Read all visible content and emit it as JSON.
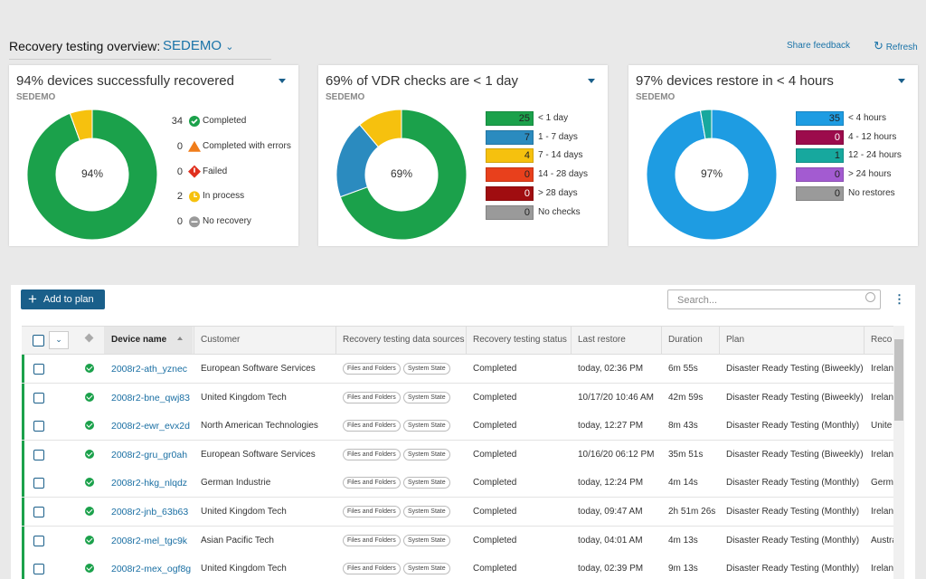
{
  "header": {
    "title": "Recovery testing overview:",
    "org": "SEDEMO",
    "share": "Share feedback",
    "refresh": "Refresh"
  },
  "cards": [
    {
      "title": "94% devices successfully recovered",
      "subtitle": "SEDEMO",
      "center": "94%",
      "legend_style": "icon",
      "items": [
        {
          "count": 34,
          "label": "Completed",
          "color": "#1ba14b"
        },
        {
          "count": 0,
          "label": "Completed with errors",
          "color": "#f07d1a"
        },
        {
          "count": 0,
          "label": "Failed",
          "color": "#e0301e"
        },
        {
          "count": 2,
          "label": "In process",
          "color": "#f6c10e"
        },
        {
          "count": 0,
          "label": "No recovery",
          "color": "#9a9a9a"
        }
      ]
    },
    {
      "title": "69% of VDR checks are < 1 day",
      "subtitle": "SEDEMO",
      "center": "69%",
      "legend_style": "box",
      "items": [
        {
          "count": 25,
          "label": "< 1 day",
          "color": "#1ba14b"
        },
        {
          "count": 7,
          "label": "1 - 7 days",
          "color": "#2b8bbf"
        },
        {
          "count": 4,
          "label": "7 - 14 days",
          "color": "#f6c10e"
        },
        {
          "count": 0,
          "label": "14 - 28 days",
          "color": "#e8401c"
        },
        {
          "count": 0,
          "label": "> 28 days",
          "color": "#a00d10"
        },
        {
          "count": 0,
          "label": "No checks",
          "color": "#9a9a9a"
        }
      ]
    },
    {
      "title": "97% devices restore in < 4 hours",
      "subtitle": "SEDEMO",
      "center": "97%",
      "legend_style": "box",
      "items": [
        {
          "count": 35,
          "label": "< 4 hours",
          "color": "#1e9ce2"
        },
        {
          "count": 0,
          "label": "4 - 12 hours",
          "color": "#9c0b4c"
        },
        {
          "count": 1,
          "label": "12 - 24 hours",
          "color": "#17a89e"
        },
        {
          "count": 0,
          "label": "> 24 hours",
          "color": "#a35bd1"
        },
        {
          "count": 0,
          "label": "No restores",
          "color": "#9a9a9a"
        }
      ]
    }
  ],
  "table": {
    "add_button": "Add to plan",
    "search_placeholder": "Search...",
    "columns": [
      "Device name",
      "Customer",
      "Recovery testing data sources",
      "Recovery testing status",
      "Last restore",
      "Duration",
      "Plan",
      "Reco"
    ],
    "rows": [
      {
        "device": "2008r2-ath_yznec",
        "customer": "European Software Services",
        "sources": [
          "Files and Folders",
          "System State"
        ],
        "status": "Completed",
        "last_restore": "today, 02:36 PM",
        "duration": "6m 55s",
        "plan": "Disaster Ready Testing (Biweekly)",
        "location": "Irelan"
      },
      {
        "device": "2008r2-bne_qwj83",
        "customer": "United Kingdom Tech",
        "sources": [
          "Files and Folders",
          "System State"
        ],
        "status": "Completed",
        "last_restore": "10/17/20 10:46 AM",
        "duration": "42m 59s",
        "plan": "Disaster Ready Testing (Biweekly)",
        "location": "Irelan"
      },
      {
        "device": "2008r2-ewr_evx2d",
        "customer": "North American Technologies",
        "sources": [
          "Files and Folders",
          "System State"
        ],
        "status": "Completed",
        "last_restore": "today, 12:27 PM",
        "duration": "8m 43s",
        "plan": "Disaster Ready Testing (Monthly)",
        "location": "Unite"
      },
      {
        "device": "2008r2-gru_gr0ah",
        "customer": "European Software Services",
        "sources": [
          "Files and Folders",
          "System State"
        ],
        "status": "Completed",
        "last_restore": "10/16/20 06:12 PM",
        "duration": "35m 51s",
        "plan": "Disaster Ready Testing (Biweekly)",
        "location": "Irelan"
      },
      {
        "device": "2008r2-hkg_nlqdz",
        "customer": "German Industrie",
        "sources": [
          "Files and Folders",
          "System State"
        ],
        "status": "Completed",
        "last_restore": "today, 12:24 PM",
        "duration": "4m 14s",
        "plan": "Disaster Ready Testing (Monthly)",
        "location": "Germ"
      },
      {
        "device": "2008r2-jnb_63b63",
        "customer": "United Kingdom Tech",
        "sources": [
          "Files and Folders",
          "System State"
        ],
        "status": "Completed",
        "last_restore": "today, 09:47 AM",
        "duration": "2h 51m 26s",
        "plan": "Disaster Ready Testing (Monthly)",
        "location": "Irelan"
      },
      {
        "device": "2008r2-mel_tgc9k",
        "customer": "Asian Pacific Tech",
        "sources": [
          "Files and Folders",
          "System State"
        ],
        "status": "Completed",
        "last_restore": "today, 04:01 AM",
        "duration": "4m 13s",
        "plan": "Disaster Ready Testing (Monthly)",
        "location": "Austra"
      },
      {
        "device": "2008r2-mex_ogf8g",
        "customer": "United Kingdom Tech",
        "sources": [
          "Files and Folders",
          "System State"
        ],
        "status": "Completed",
        "last_restore": "today, 02:39 PM",
        "duration": "9m 13s",
        "plan": "Disaster Ready Testing (Monthly)",
        "location": "Irelan"
      }
    ]
  }
}
